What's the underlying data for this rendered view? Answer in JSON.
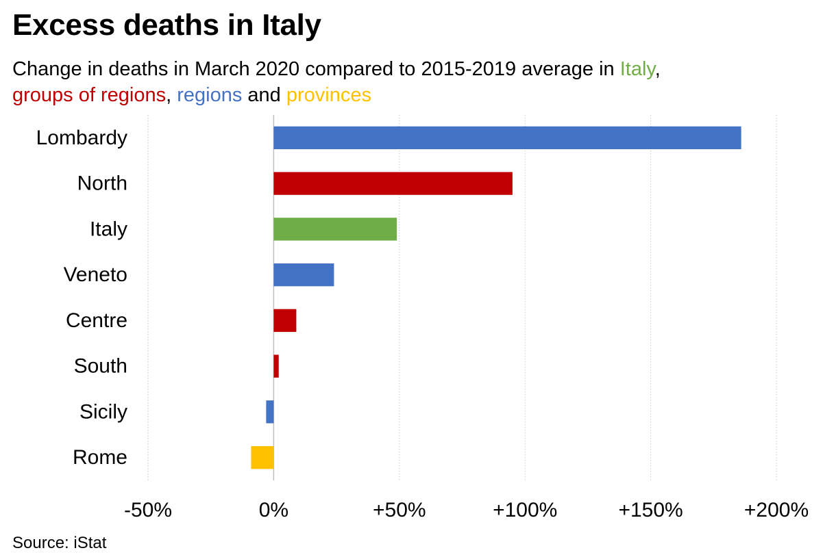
{
  "title": "Excess deaths in Italy",
  "subtitle": {
    "lead": "Change in deaths in March 2020 compared to 2015-2019 average in ",
    "italy": "Italy",
    "sep1": ",",
    "groups": "groups of regions",
    "sep2": ", ",
    "regions": "regions",
    "and": " and ",
    "provinces": "provinces"
  },
  "source": "Source: iStat",
  "colors": {
    "italy": "#70AD47",
    "groups_of_regions": "#C00000",
    "regions": "#4472C4",
    "provinces": "#FFC000",
    "grid": "#C8C8C8",
    "zero_line": "#BFBFBF"
  },
  "chart_data": {
    "type": "bar",
    "orientation": "horizontal",
    "categories": [
      "Lombardy",
      "North",
      "Italy",
      "Veneto",
      "Centre",
      "South",
      "Sicily",
      "Rome"
    ],
    "values": [
      186,
      95,
      49,
      24,
      9,
      2,
      -3,
      -9
    ],
    "groups": [
      "regions",
      "groups_of_regions",
      "italy",
      "regions",
      "groups_of_regions",
      "groups_of_regions",
      "regions",
      "provinces"
    ],
    "xlim": [
      -50,
      200
    ],
    "xticks": [
      -50,
      0,
      50,
      100,
      150,
      200
    ],
    "xtick_labels": [
      "-50%",
      "0%",
      "+50%",
      "+100%",
      "+150%",
      "+200%"
    ],
    "grid": true
  }
}
